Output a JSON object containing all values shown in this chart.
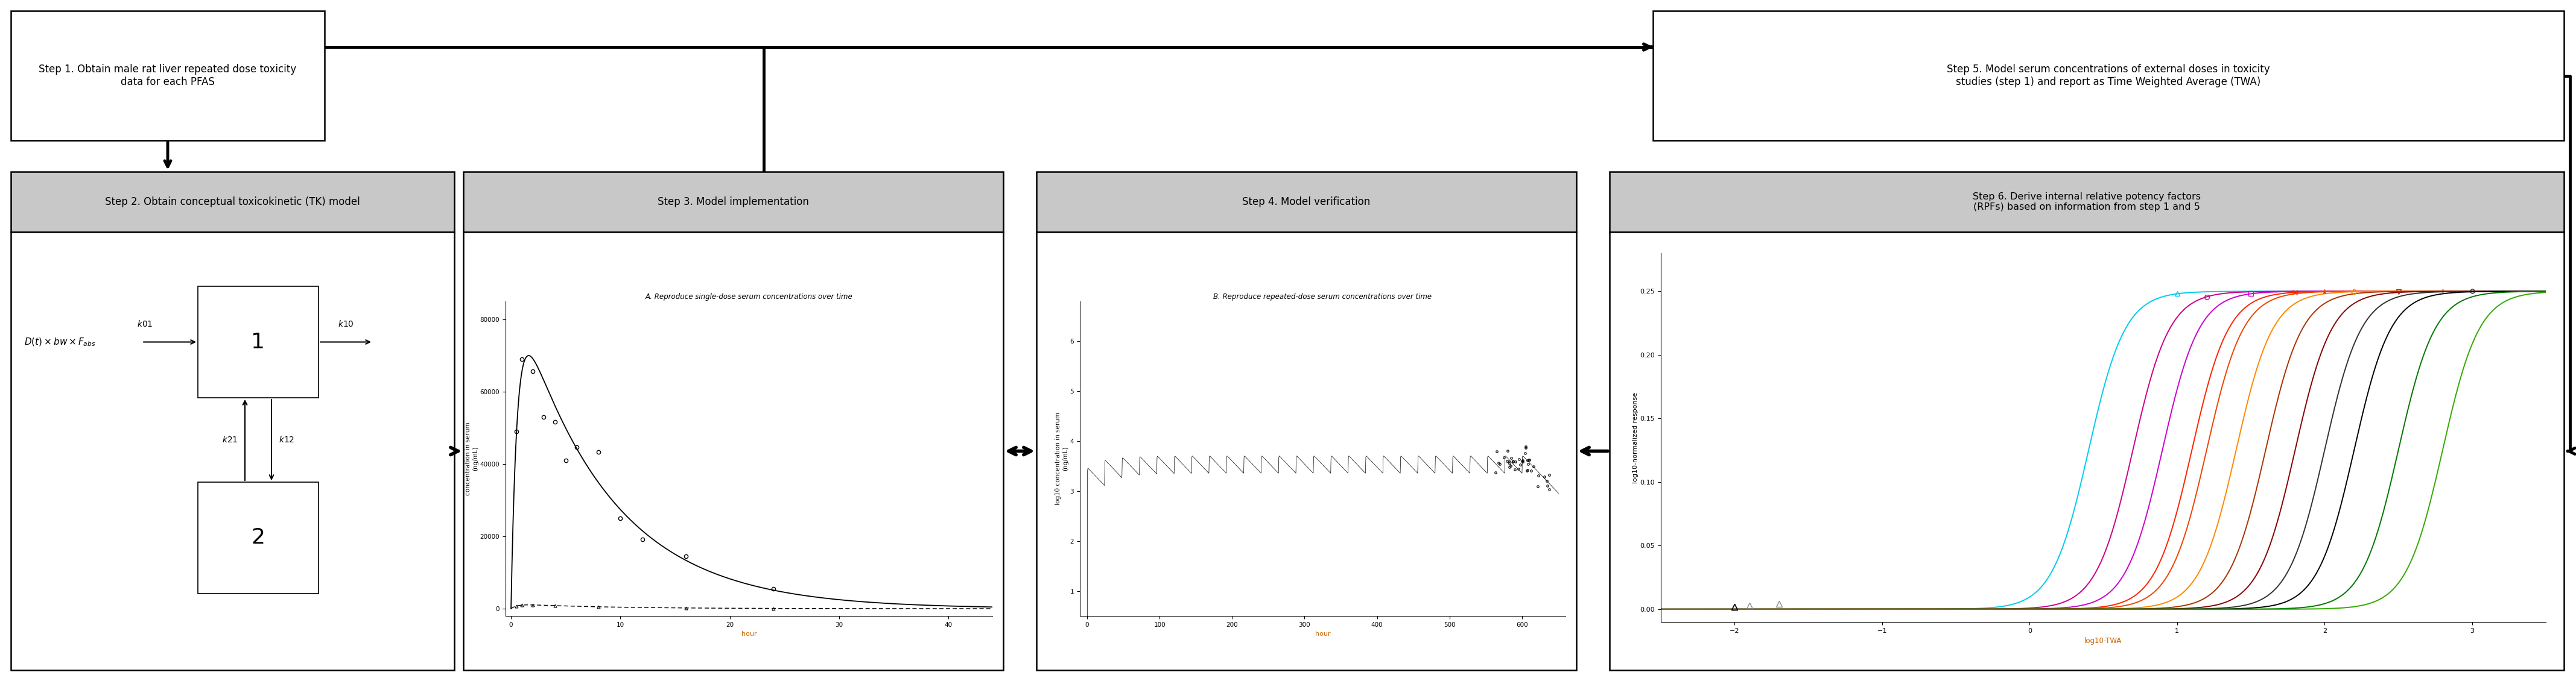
{
  "fig_width": 42.7,
  "fig_height": 11.3,
  "bg_color": "#ffffff",
  "header_color": "#c8c8c8",
  "step1_text": "Step 1. Obtain male rat liver repeated dose toxicity\ndata for each PFAS",
  "step2_title": "Step 2. Obtain conceptual toxicokinetic (TK) model",
  "step3_title": "Step 3. Model implementation",
  "step4_title": "Step 4. Model verification",
  "step5_text": "Step 5. Model serum concentrations of external doses in toxicity\nstudies (step 1) and report as Time Weighted Average (TWA)",
  "step6_title": "Step 6. Derive internal relative potency factors\n(RPFs) based on information from step 1 and 5",
  "plot3_title": "A. Reproduce single-dose serum concentrations over time",
  "plot3_ylabel": "concentration in serum\n(ng/mL)",
  "plot3_xlabel": "hour",
  "plot3_yticks": [
    0,
    20000,
    40000,
    60000,
    80000
  ],
  "plot3_xticks": [
    0,
    10,
    20,
    30,
    40
  ],
  "plot3_ylim": [
    -2000,
    85000
  ],
  "plot3_xlim": [
    -0.5,
    44
  ],
  "plot4_title": "B. Reproduce repeated-dose serum concentrations over time",
  "plot4_ylabel": "log10 concentration in serum\n(ng/mL)",
  "plot4_xlabel": "hour",
  "plot4_yticks": [
    1,
    2,
    3,
    4,
    5,
    6
  ],
  "plot4_xticks": [
    0,
    100,
    200,
    300,
    400,
    500,
    600
  ],
  "plot4_ylim": [
    0.5,
    6.8
  ],
  "plot4_xlim": [
    -10,
    660
  ],
  "plot6_ylabel": "log10-normalized response",
  "plot6_xlabel": "log10-TWA",
  "plot6_yticks": [
    0.0,
    0.05,
    0.1,
    0.15,
    0.2,
    0.25
  ],
  "plot6_xticks": [
    -2,
    -1,
    0,
    1,
    2,
    3
  ],
  "plot6_ylim": [
    -0.01,
    0.28
  ],
  "plot6_xlim": [
    -2.5,
    3.5
  ],
  "tk_label_k01": "k01",
  "tk_label_k10": "k10",
  "tk_label_k12": "k12",
  "tk_label_k21": "k21",
  "curve_colors": [
    "#00ccdd",
    "#dd0088",
    "#aa00aa",
    "#ff0000",
    "#ee4400",
    "#ff8800",
    "#cc4400",
    "#880000",
    "#000000",
    "#000000",
    "#006600",
    "#00aa00"
  ],
  "curve_styles": [
    "-",
    "-",
    "-",
    "-",
    "-",
    "-",
    "-",
    "-",
    "-",
    "--",
    "--",
    "--"
  ]
}
